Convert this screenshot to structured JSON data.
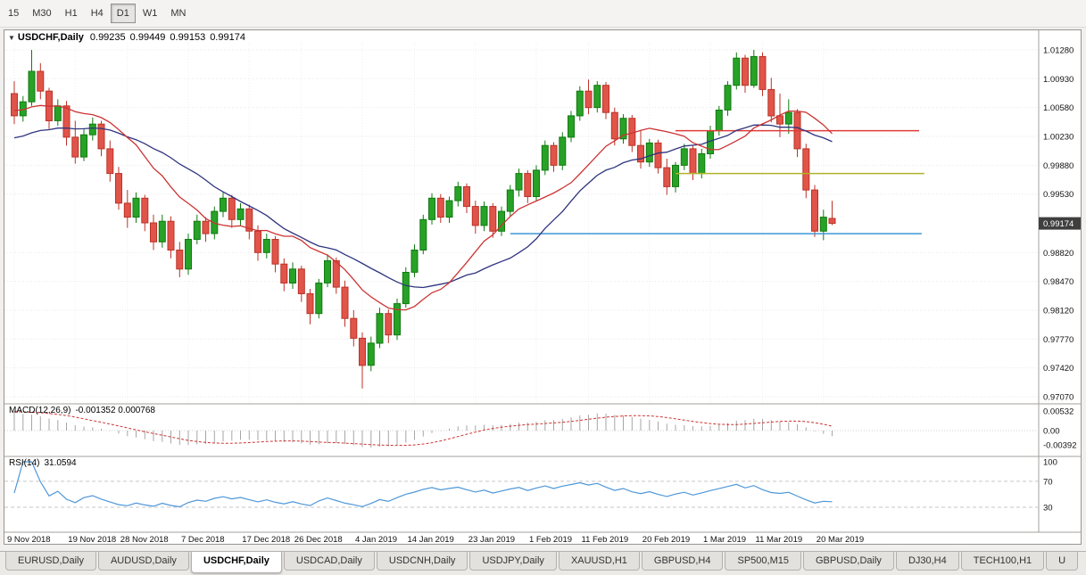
{
  "toolbar": {
    "timeframes": [
      {
        "label": "15",
        "active": false
      },
      {
        "label": "M30",
        "active": false
      },
      {
        "label": "H1",
        "active": false
      },
      {
        "label": "H4",
        "active": false
      },
      {
        "label": "D1",
        "active": true
      },
      {
        "label": "W1",
        "active": false
      },
      {
        "label": "MN",
        "active": false
      }
    ]
  },
  "chart": {
    "header": {
      "symbol": "USDCHF,Daily",
      "open": "0.99235",
      "high": "0.99449",
      "low": "0.99153",
      "close": "0.99174"
    },
    "current_price": "0.99174",
    "y_axis_labels": [
      "1.01280",
      "1.00930",
      "1.00580",
      "1.00230",
      "0.99880",
      "0.99530",
      "0.98820",
      "0.98470",
      "0.98120",
      "0.97770",
      "0.97420",
      "0.97070"
    ],
    "x_labels": [
      {
        "i": 0,
        "label": "9 Nov 2018"
      },
      {
        "i": 7,
        "label": "19 Nov 2018"
      },
      {
        "i": 13,
        "label": "28 Nov 2018"
      },
      {
        "i": 20,
        "label": "7 Dec 2018"
      },
      {
        "i": 27,
        "label": "17 Dec 2018"
      },
      {
        "i": 33,
        "label": "26 Dec 2018"
      },
      {
        "i": 40,
        "label": "4 Jan 2019"
      },
      {
        "i": 46,
        "label": "14 Jan 2019"
      },
      {
        "i": 53,
        "label": "23 Jan 2019"
      },
      {
        "i": 60,
        "label": "1 Feb 2019"
      },
      {
        "i": 66,
        "label": "11 Feb 2019"
      },
      {
        "i": 73,
        "label": "20 Feb 2019"
      },
      {
        "i": 80,
        "label": "1 Mar 2019"
      },
      {
        "i": 86,
        "label": "11 Mar 2019"
      },
      {
        "i": 93,
        "label": "20 Mar 2019"
      }
    ],
    "hlines": [
      {
        "name": "resistance-line",
        "price": 1.003,
        "from": 76,
        "to": 104.0,
        "color": "#e03a3a"
      },
      {
        "name": "pivot-line",
        "price": 0.9978,
        "from": 76,
        "to": 104.6,
        "color": "#b0b428"
      },
      {
        "name": "support-line",
        "price": 0.9905,
        "from": 57,
        "to": 104.3,
        "color": "#3f97d4"
      }
    ],
    "ma_fast_period": 13,
    "ma_slow_period": 21,
    "colors": {
      "up": "#27a227",
      "up_border": "#107a10",
      "down": "#e0544a",
      "down_border": "#bb3327",
      "ma_fast": "#cc3333",
      "ma_slow": "#2f347e",
      "badge_bg": "#3f3f3f",
      "badge_text": "#ffffff"
    },
    "candles": [
      [
        1.0075,
        1.009,
        1.0038,
        1.0048
      ],
      [
        1.0048,
        1.0072,
        1.0041,
        1.0065
      ],
      [
        1.0065,
        1.0128,
        1.006,
        1.0102
      ],
      [
        1.0102,
        1.0112,
        1.0068,
        1.0078
      ],
      [
        1.0078,
        1.0082,
        1.0032,
        1.0042
      ],
      [
        1.0042,
        1.0068,
        1.0036,
        1.006
      ],
      [
        1.006,
        1.0066,
        1.0012,
        1.0022
      ],
      [
        1.0022,
        1.0042,
        0.999,
        0.9998
      ],
      [
        0.9998,
        1.0032,
        0.9993,
        1.0025
      ],
      [
        1.0025,
        1.0046,
        1.0018,
        1.0038
      ],
      [
        1.0038,
        1.0042,
        0.9999,
        1.0008
      ],
      [
        1.0008,
        1.0018,
        0.9968,
        0.9978
      ],
      [
        0.9978,
        0.9986,
        0.9934,
        0.9942
      ],
      [
        0.9942,
        0.9958,
        0.9912,
        0.9925
      ],
      [
        0.9925,
        0.9955,
        0.9918,
        0.9948
      ],
      [
        0.9948,
        0.9952,
        0.9908,
        0.9918
      ],
      [
        0.9918,
        0.9928,
        0.9885,
        0.9895
      ],
      [
        0.9895,
        0.9928,
        0.9888,
        0.992
      ],
      [
        0.992,
        0.9926,
        0.9875,
        0.9885
      ],
      [
        0.9885,
        0.9895,
        0.9852,
        0.9862
      ],
      [
        0.9862,
        0.9905,
        0.9855,
        0.9898
      ],
      [
        0.9898,
        0.9928,
        0.9892,
        0.992
      ],
      [
        0.992,
        0.9925,
        0.9895,
        0.9905
      ],
      [
        0.9905,
        0.9938,
        0.9898,
        0.9932
      ],
      [
        0.9932,
        0.9955,
        0.9925,
        0.9948
      ],
      [
        0.9948,
        0.9952,
        0.9912,
        0.9922
      ],
      [
        0.9922,
        0.9942,
        0.9915,
        0.9935
      ],
      [
        0.9935,
        0.994,
        0.9898,
        0.9908
      ],
      [
        0.9908,
        0.9915,
        0.9872,
        0.9882
      ],
      [
        0.9882,
        0.9905,
        0.9875,
        0.9898
      ],
      [
        0.9898,
        0.9902,
        0.9858,
        0.9868
      ],
      [
        0.9868,
        0.9875,
        0.9835,
        0.9845
      ],
      [
        0.9845,
        0.987,
        0.9838,
        0.9862
      ],
      [
        0.9862,
        0.9866,
        0.9822,
        0.9832
      ],
      [
        0.9832,
        0.9838,
        0.9795,
        0.9808
      ],
      [
        0.9808,
        0.985,
        0.9802,
        0.9845
      ],
      [
        0.9845,
        0.988,
        0.984,
        0.9872
      ],
      [
        0.9872,
        0.9876,
        0.9832,
        0.984
      ],
      [
        0.984,
        0.9848,
        0.9792,
        0.9802
      ],
      [
        0.9802,
        0.9812,
        0.9768,
        0.9778
      ],
      [
        0.9778,
        0.9785,
        0.9717,
        0.9745
      ],
      [
        0.9745,
        0.978,
        0.9738,
        0.9772
      ],
      [
        0.9772,
        0.9815,
        0.9766,
        0.9808
      ],
      [
        0.9808,
        0.9813,
        0.9772,
        0.9782
      ],
      [
        0.9782,
        0.9826,
        0.9776,
        0.982
      ],
      [
        0.982,
        0.9864,
        0.9815,
        0.9858
      ],
      [
        0.9858,
        0.9892,
        0.9852,
        0.9885
      ],
      [
        0.9885,
        0.9928,
        0.988,
        0.9922
      ],
      [
        0.9922,
        0.9954,
        0.9916,
        0.9948
      ],
      [
        0.9948,
        0.9953,
        0.9918,
        0.9925
      ],
      [
        0.9925,
        0.995,
        0.9918,
        0.9945
      ],
      [
        0.9945,
        0.9968,
        0.9938,
        0.9962
      ],
      [
        0.9962,
        0.9966,
        0.993,
        0.9938
      ],
      [
        0.9938,
        0.9945,
        0.9905,
        0.9915
      ],
      [
        0.9915,
        0.9944,
        0.9908,
        0.9938
      ],
      [
        0.9938,
        0.9942,
        0.99,
        0.9908
      ],
      [
        0.9908,
        0.9938,
        0.9902,
        0.9932
      ],
      [
        0.9932,
        0.9964,
        0.9926,
        0.9958
      ],
      [
        0.9958,
        0.9984,
        0.995,
        0.9978
      ],
      [
        0.9978,
        0.9982,
        0.9942,
        0.995
      ],
      [
        0.995,
        0.9988,
        0.9944,
        0.9982
      ],
      [
        0.9982,
        1.0018,
        0.9976,
        1.0012
      ],
      [
        1.0012,
        1.0016,
        0.998,
        0.9988
      ],
      [
        0.9988,
        1.0028,
        0.9982,
        1.0022
      ],
      [
        1.0022,
        1.0054,
        1.0016,
        1.0048
      ],
      [
        1.0048,
        1.0084,
        1.0042,
        1.0078
      ],
      [
        1.0078,
        1.0092,
        1.005,
        1.0058
      ],
      [
        1.0058,
        1.009,
        1.0052,
        1.0085
      ],
      [
        1.0085,
        1.0089,
        1.0044,
        1.0052
      ],
      [
        1.0052,
        1.0058,
        1.0012,
        1.002
      ],
      [
        1.002,
        1.005,
        1.0014,
        1.0045
      ],
      [
        1.0045,
        1.0049,
        1.0004,
        1.0012
      ],
      [
        1.0012,
        1.003,
        0.9984,
        0.9992
      ],
      [
        0.9992,
        1.002,
        0.9986,
        1.0015
      ],
      [
        1.0015,
        1.0019,
        0.9978,
        0.9985
      ],
      [
        0.9985,
        0.9996,
        0.9952,
        0.9962
      ],
      [
        0.9962,
        0.9992,
        0.9955,
        0.9988
      ],
      [
        0.9988,
        1.0014,
        0.9982,
        1.0008
      ],
      [
        1.0008,
        1.0012,
        0.997,
        0.9978
      ],
      [
        0.9978,
        1.0008,
        0.9972,
        1.0002
      ],
      [
        1.0002,
        1.0036,
        0.9996,
        1.003
      ],
      [
        1.003,
        1.006,
        1.0024,
        1.0055
      ],
      [
        1.0055,
        1.009,
        1.0048,
        1.0085
      ],
      [
        1.0085,
        1.0125,
        1.008,
        1.0118
      ],
      [
        1.0118,
        1.0122,
        1.0076,
        1.0085
      ],
      [
        1.0085,
        1.0128,
        1.0082,
        1.012
      ],
      [
        1.012,
        1.0125,
        1.0072,
        1.008
      ],
      [
        1.008,
        1.0094,
        1.004,
        1.0048
      ],
      [
        1.0048,
        1.0075,
        1.0022,
        1.0038
      ],
      [
        1.0038,
        1.0068,
        1.0026,
        1.0052
      ],
      [
        1.0052,
        1.0056,
        0.9998,
        1.0008
      ],
      [
        1.0008,
        1.0014,
        0.9948,
        0.9958
      ],
      [
        0.9958,
        0.9964,
        0.9901,
        0.9908
      ],
      [
        0.9908,
        0.9934,
        0.9897,
        0.9925
      ],
      [
        0.99235,
        0.99449,
        0.99153,
        0.99174
      ]
    ]
  },
  "macd": {
    "label": "MACD(12,26,9)",
    "values": "-0.001352 0.000768",
    "axis_labels": [
      "0.00532",
      "0.00",
      "-0.00392"
    ],
    "colors": {
      "histogram": "#a6a6a6",
      "signal": "#cc3333"
    }
  },
  "rsi": {
    "label": "RSI(14)",
    "value": "31.0594",
    "axis_labels": [
      "100",
      "70",
      "30"
    ],
    "levels": [
      70,
      30
    ],
    "color": "#4e97d9"
  },
  "tabs": [
    {
      "label": "EURUSD,Daily",
      "active": false
    },
    {
      "label": "AUDUSD,Daily",
      "active": false
    },
    {
      "label": "USDCHF,Daily",
      "active": true
    },
    {
      "label": "USDCAD,Daily",
      "active": false
    },
    {
      "label": "USDCNH,Daily",
      "active": false
    },
    {
      "label": "USDJPY,Daily",
      "active": false
    },
    {
      "label": "XAUUSD,H1",
      "active": false
    },
    {
      "label": "GBPUSD,H4",
      "active": false
    },
    {
      "label": "SP500,M15",
      "active": false
    },
    {
      "label": "GBPUSD,Daily",
      "active": false
    },
    {
      "label": "DJ30,H4",
      "active": false
    },
    {
      "label": "TECH100,H1",
      "active": false
    },
    {
      "label": "U",
      "active": false
    }
  ]
}
